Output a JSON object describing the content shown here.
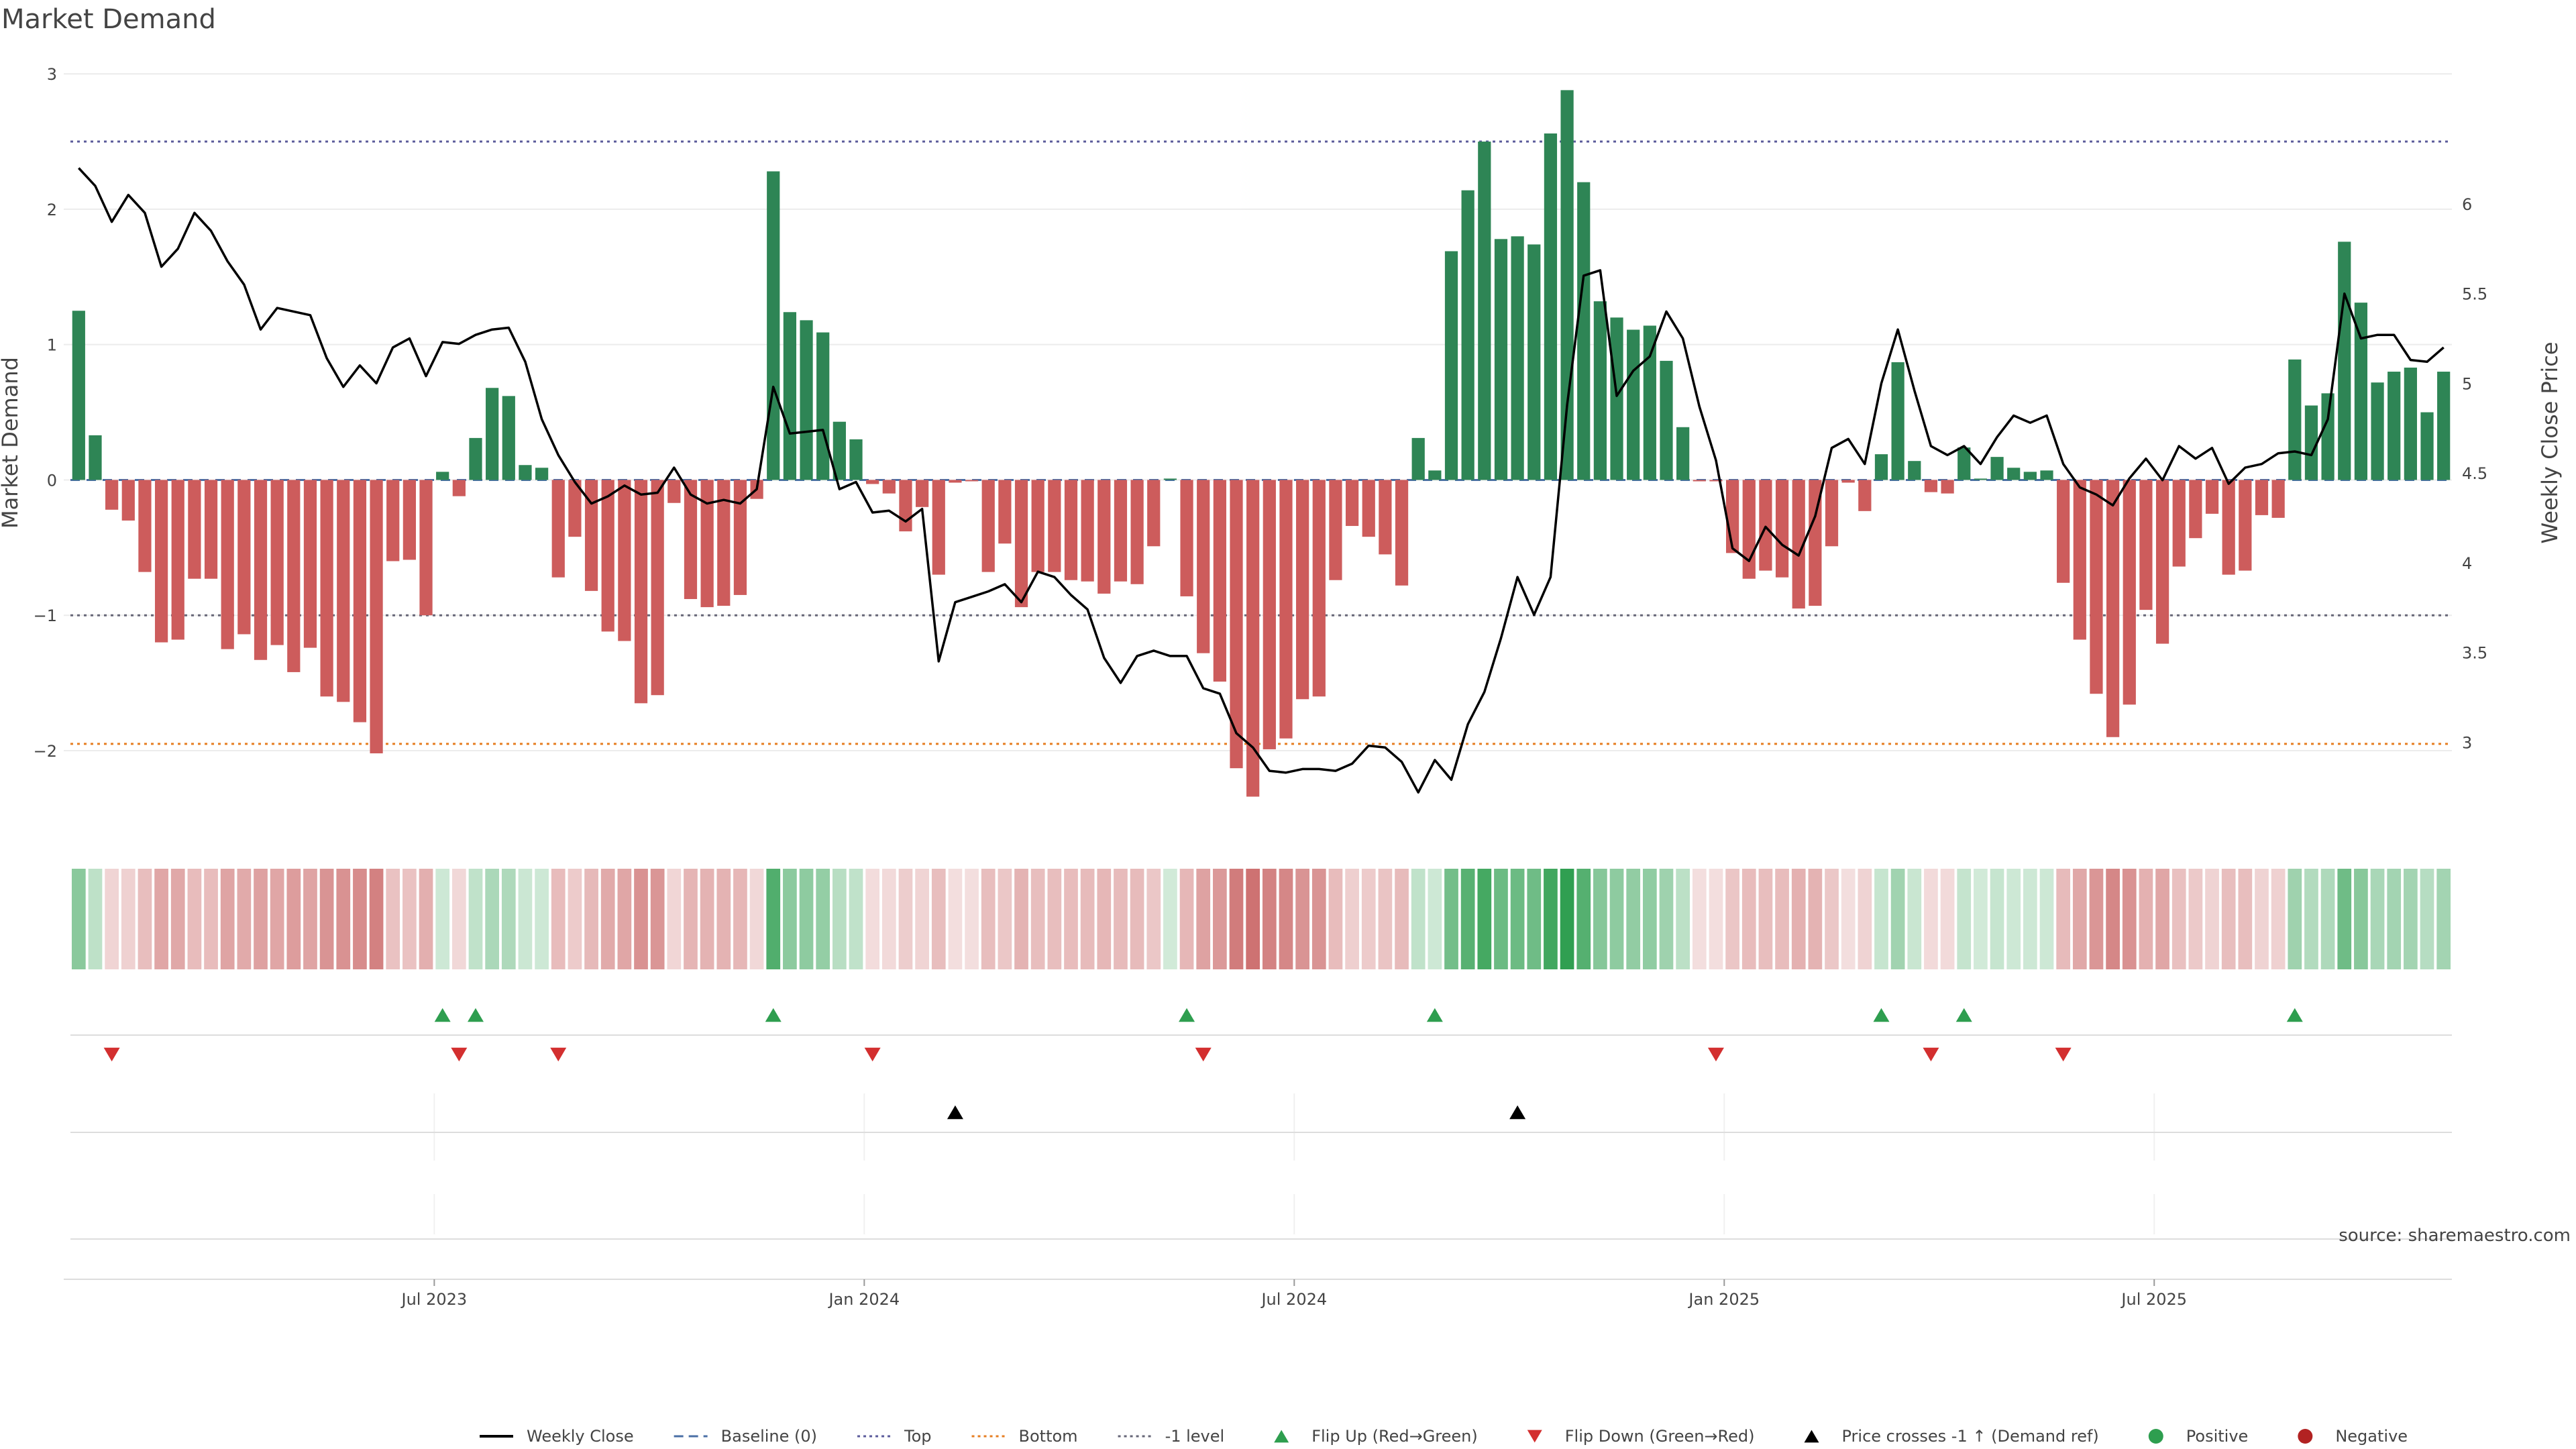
{
  "chart_data": {
    "type": "bar",
    "title": "Market Demand",
    "ylabel_left": "Market Demand",
    "ylabel_right": "Weekly Close Price",
    "source": "source: sharemaestro.com",
    "ylim_left": [
      -2.6,
      3.1
    ],
    "ylim_right": [
      2.5,
      6.8
    ],
    "yticks_left": [
      3,
      2,
      1,
      0,
      -1,
      -2
    ],
    "ytick_labels_left": [
      "3",
      "2",
      "1",
      "0",
      "−1",
      "−2"
    ],
    "yticks_right": [
      6,
      5.5,
      5,
      4.5,
      4,
      3.5,
      3
    ],
    "ytick_labels_right": [
      "6",
      "5.5",
      "5",
      "4.5",
      "4",
      "3.5",
      "3"
    ],
    "reference_lines": {
      "top": 2.5,
      "bottom": -1.95,
      "minus_one": -1,
      "baseline": 0
    },
    "time_axis": {
      "ticks": [
        {
          "label": "Jul 2023",
          "week": 22
        },
        {
          "label": "Jan 2024",
          "week": 48
        },
        {
          "label": "Jul 2024",
          "week": 74
        },
        {
          "label": "Jan 2025",
          "week": 100
        },
        {
          "label": "Jul 2025",
          "week": 126
        }
      ],
      "total_weeks": 144
    },
    "series": [
      {
        "name": "Market Demand",
        "kind": "bar",
        "values": [
          1.25,
          0.33,
          -0.22,
          -0.3,
          -0.68,
          -1.2,
          -1.18,
          -0.73,
          -0.73,
          -1.25,
          -1.14,
          -1.33,
          -1.22,
          -1.42,
          -1.24,
          -1.6,
          -1.64,
          -1.79,
          -2.02,
          -0.6,
          -0.59,
          -1.0,
          0.06,
          -0.12,
          0.31,
          0.68,
          0.62,
          0.11,
          0.09,
          -0.72,
          -0.42,
          -0.82,
          -1.12,
          -1.19,
          -1.65,
          -1.59,
          -0.17,
          -0.88,
          -0.94,
          -0.93,
          -0.85,
          -0.14,
          2.28,
          1.24,
          1.18,
          1.09,
          0.43,
          0.3,
          -0.03,
          -0.1,
          -0.38,
          -0.2,
          -0.7,
          -0.02,
          -0.01,
          -0.68,
          -0.47,
          -0.94,
          -0.68,
          -0.68,
          -0.74,
          -0.75,
          -0.84,
          -0.75,
          -0.77,
          -0.49,
          0.01,
          -0.86,
          -1.28,
          -1.49,
          -2.13,
          -2.34,
          -1.99,
          -1.91,
          -1.62,
          -1.6,
          -0.74,
          -0.34,
          -0.42,
          -0.55,
          -0.78,
          0.31,
          0.07,
          1.69,
          2.14,
          2.5,
          1.78,
          1.8,
          1.74,
          2.56,
          2.88,
          2.2,
          1.32,
          1.2,
          1.11,
          1.14,
          0.88,
          0.39,
          -0.01,
          -0.01,
          -0.54,
          -0.73,
          -0.67,
          -0.72,
          -0.95,
          -0.93,
          -0.49,
          -0.02,
          -0.23,
          0.19,
          0.87,
          0.14,
          -0.09,
          -0.1,
          0.24,
          0.01,
          0.17,
          0.09,
          0.06,
          0.07,
          -0.76,
          -1.18,
          -1.58,
          -1.9,
          -1.66,
          -0.96,
          -1.21,
          -0.64,
          -0.43,
          -0.25,
          -0.7,
          -0.67,
          -0.26,
          -0.28,
          0.89,
          0.55,
          0.64,
          1.76,
          1.31,
          0.72,
          0.8,
          0.83,
          0.5,
          0.8
        ],
        "positive_color": "#2e8555",
        "negative_color": "#cd5c5c"
      },
      {
        "name": "Weekly Close",
        "kind": "line",
        "color": "#000000",
        "values": [
          6.2,
          6.1,
          5.9,
          6.05,
          5.95,
          5.65,
          5.75,
          5.95,
          5.85,
          5.68,
          5.55,
          5.3,
          5.42,
          5.4,
          5.38,
          5.14,
          4.98,
          5.1,
          5.0,
          5.2,
          5.25,
          5.04,
          5.23,
          5.22,
          5.27,
          5.3,
          5.31,
          5.12,
          4.8,
          4.6,
          4.45,
          4.33,
          4.37,
          4.43,
          4.38,
          4.39,
          4.53,
          4.38,
          4.33,
          4.35,
          4.33,
          4.41,
          4.98,
          4.72,
          4.73,
          4.74,
          4.41,
          4.45,
          4.28,
          4.29,
          4.23,
          4.3,
          3.45,
          3.78,
          3.81,
          3.84,
          3.88,
          3.78,
          3.95,
          3.92,
          3.82,
          3.74,
          3.47,
          3.33,
          3.48,
          3.51,
          3.48,
          3.48,
          3.3,
          3.27,
          3.05,
          2.97,
          2.84,
          2.83,
          2.85,
          2.85,
          2.84,
          2.88,
          2.98,
          2.97,
          2.89,
          2.72,
          2.9,
          2.79,
          3.1,
          3.28,
          3.58,
          3.92,
          3.71,
          3.92,
          4.88,
          5.6,
          5.63,
          4.93,
          5.07,
          5.15,
          5.4,
          5.25,
          4.87,
          4.57,
          4.08,
          4.01,
          4.2,
          4.1,
          4.04,
          4.26,
          4.64,
          4.69,
          4.55,
          5.0,
          5.3,
          4.96,
          4.65,
          4.6,
          4.65,
          4.55,
          4.7,
          4.82,
          4.78,
          4.82,
          4.55,
          4.42,
          4.38,
          4.32,
          4.47,
          4.58,
          4.46,
          4.65,
          4.58,
          4.64,
          4.44,
          4.53,
          4.55,
          4.61,
          4.62,
          4.6,
          4.8,
          5.5,
          5.25,
          5.27,
          5.27,
          5.13,
          5.12,
          5.2
        ]
      }
    ],
    "heat_strip": {
      "description_none": ""
    },
    "events": {
      "flip_up": [
        22,
        24,
        42,
        67,
        82,
        109,
        114,
        134
      ],
      "flip_down": [
        2,
        23,
        29,
        48,
        68,
        99,
        112,
        120
      ],
      "price_crosses_minus1_up": [
        53,
        87
      ]
    },
    "legend": [
      {
        "label": "Weekly Close",
        "style": "line",
        "color": "#000000"
      },
      {
        "label": "Baseline (0)",
        "style": "dash",
        "color": "#4a6fa5"
      },
      {
        "label": "Top",
        "style": "dot",
        "color": "#5b5b9b"
      },
      {
        "label": "Bottom",
        "style": "dot",
        "color": "#e67e22"
      },
      {
        "label": "-1 level",
        "style": "dot",
        "color": "#666677"
      },
      {
        "label": "Flip Up (Red→Green)",
        "style": "tri-up",
        "color": "#2e9e4f"
      },
      {
        "label": "Flip Down (Green→Red)",
        "style": "tri-down",
        "color": "#d32f2f"
      },
      {
        "label": "Price crosses -1 ↑ (Demand ref)",
        "style": "tri-up",
        "color": "#000000"
      },
      {
        "label": "Positive",
        "style": "dot-circle",
        "color": "#2e9e4f"
      },
      {
        "label": "Negative",
        "style": "dot-circle",
        "color": "#b22222"
      }
    ]
  }
}
